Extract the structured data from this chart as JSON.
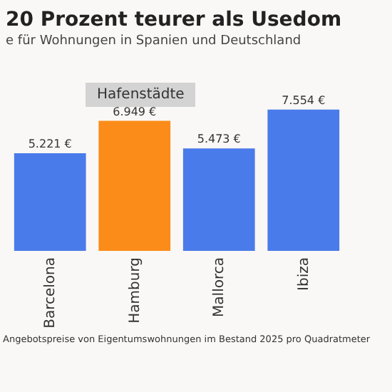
{
  "chart_data": {
    "type": "bar",
    "title": "20 Prozent teurer als Usedom",
    "subtitle": "e für Wohnungen in Spanien und Deutschland",
    "categories": [
      "Barcelona",
      "Hamburg",
      "Mallorca",
      "Ibiza"
    ],
    "values": [
      5221,
      6949,
      5473,
      7554
    ],
    "colors": [
      "#4a7bea",
      "#fb8c1a",
      "#4a7bea",
      "#4a7bea"
    ],
    "value_labels": [
      "5.221 €",
      "6.949 €",
      "5.473 €",
      "7.554 €"
    ],
    "annotations": [
      "Hafenstädte",
      "Angebotspreise von Eigentumswohnungen im Bestand 2025 pro Quadratmeter"
    ]
  }
}
